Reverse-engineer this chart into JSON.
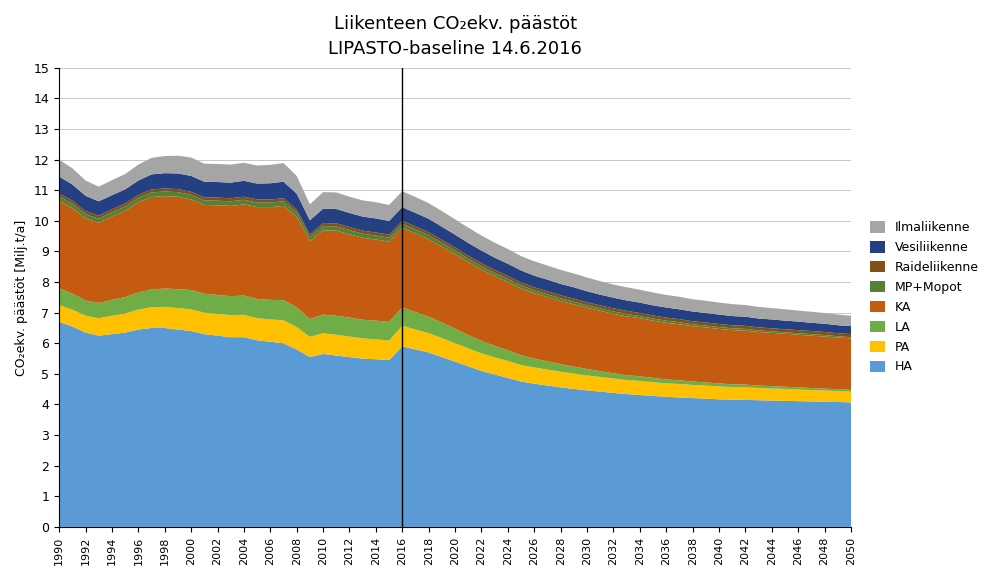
{
  "title_line1": "Liikenteen CO₂ekv. päästöt",
  "title_line2": "LIPASTO-baseline 14.6.2016",
  "ylabel": "CO₂ekv. päästöt [Milj.t/a]",
  "vline_x": 2016,
  "ylim": [
    0,
    15
  ],
  "yticks": [
    0,
    1,
    2,
    3,
    4,
    5,
    6,
    7,
    8,
    9,
    10,
    11,
    12,
    13,
    14,
    15
  ],
  "background_color": "#ffffff",
  "colors": {
    "HA": "#5B9BD5",
    "PA": "#FFC000",
    "LA": "#70AD47",
    "KA": "#C55A11",
    "MP+Mopot": "#538135",
    "Raideliikenne": "#7F5217",
    "Vesiliikenne": "#243F82",
    "Ilmaliikenne": "#A5A5A5"
  },
  "years": [
    1990,
    1991,
    1992,
    1993,
    1994,
    1995,
    1996,
    1997,
    1998,
    1999,
    2000,
    2001,
    2002,
    2003,
    2004,
    2005,
    2006,
    2007,
    2008,
    2009,
    2010,
    2011,
    2012,
    2013,
    2014,
    2015,
    2016,
    2017,
    2018,
    2019,
    2020,
    2021,
    2022,
    2023,
    2024,
    2025,
    2026,
    2027,
    2028,
    2029,
    2030,
    2031,
    2032,
    2033,
    2034,
    2035,
    2036,
    2037,
    2038,
    2039,
    2040,
    2041,
    2042,
    2043,
    2044,
    2045,
    2046,
    2047,
    2048,
    2049,
    2050
  ],
  "HA": [
    6.7,
    6.55,
    6.35,
    6.25,
    6.3,
    6.35,
    6.45,
    6.5,
    6.5,
    6.45,
    6.4,
    6.3,
    6.25,
    6.2,
    6.2,
    6.1,
    6.05,
    6.0,
    5.8,
    5.55,
    5.65,
    5.6,
    5.55,
    5.5,
    5.48,
    5.45,
    5.9,
    5.8,
    5.7,
    5.55,
    5.4,
    5.25,
    5.1,
    4.98,
    4.87,
    4.75,
    4.68,
    4.62,
    4.56,
    4.51,
    4.46,
    4.42,
    4.38,
    4.34,
    4.31,
    4.28,
    4.25,
    4.23,
    4.21,
    4.19,
    4.17,
    4.16,
    4.15,
    4.14,
    4.13,
    4.12,
    4.11,
    4.1,
    4.09,
    4.08,
    4.07
  ],
  "PA": [
    0.55,
    0.55,
    0.55,
    0.57,
    0.6,
    0.62,
    0.65,
    0.68,
    0.69,
    0.7,
    0.71,
    0.7,
    0.71,
    0.72,
    0.73,
    0.72,
    0.73,
    0.75,
    0.73,
    0.66,
    0.68,
    0.68,
    0.67,
    0.66,
    0.65,
    0.64,
    0.67,
    0.65,
    0.63,
    0.62,
    0.6,
    0.58,
    0.57,
    0.56,
    0.55,
    0.54,
    0.53,
    0.52,
    0.51,
    0.5,
    0.49,
    0.48,
    0.47,
    0.46,
    0.46,
    0.45,
    0.44,
    0.44,
    0.43,
    0.43,
    0.42,
    0.41,
    0.41,
    0.4,
    0.39,
    0.39,
    0.38,
    0.37,
    0.37,
    0.36,
    0.35
  ],
  "LA": [
    0.55,
    0.52,
    0.5,
    0.5,
    0.52,
    0.54,
    0.56,
    0.58,
    0.6,
    0.62,
    0.63,
    0.62,
    0.62,
    0.62,
    0.63,
    0.63,
    0.64,
    0.66,
    0.65,
    0.58,
    0.61,
    0.62,
    0.62,
    0.61,
    0.61,
    0.61,
    0.6,
    0.57,
    0.54,
    0.51,
    0.48,
    0.44,
    0.41,
    0.38,
    0.35,
    0.32,
    0.29,
    0.27,
    0.25,
    0.23,
    0.21,
    0.19,
    0.17,
    0.16,
    0.15,
    0.14,
    0.13,
    0.12,
    0.11,
    0.1,
    0.1,
    0.09,
    0.09,
    0.08,
    0.08,
    0.07,
    0.07,
    0.07,
    0.06,
    0.06,
    0.06
  ],
  "KA": [
    2.85,
    2.8,
    2.68,
    2.62,
    2.72,
    2.82,
    2.95,
    3.02,
    3.02,
    3.02,
    2.96,
    2.9,
    2.93,
    2.95,
    2.98,
    3.0,
    3.03,
    3.08,
    2.95,
    2.55,
    2.75,
    2.78,
    2.72,
    2.68,
    2.65,
    2.62,
    2.6,
    2.57,
    2.53,
    2.48,
    2.43,
    2.38,
    2.33,
    2.28,
    2.23,
    2.18,
    2.14,
    2.1,
    2.06,
    2.03,
    2.0,
    1.97,
    1.94,
    1.92,
    1.9,
    1.87,
    1.85,
    1.83,
    1.81,
    1.8,
    1.78,
    1.77,
    1.76,
    1.75,
    1.74,
    1.73,
    1.72,
    1.71,
    1.7,
    1.69,
    1.68
  ],
  "MP+Mopot": [
    0.15,
    0.14,
    0.14,
    0.13,
    0.14,
    0.14,
    0.14,
    0.15,
    0.15,
    0.15,
    0.15,
    0.15,
    0.15,
    0.15,
    0.15,
    0.15,
    0.15,
    0.15,
    0.14,
    0.13,
    0.14,
    0.14,
    0.14,
    0.13,
    0.13,
    0.13,
    0.13,
    0.13,
    0.13,
    0.12,
    0.12,
    0.11,
    0.11,
    0.1,
    0.1,
    0.1,
    0.09,
    0.09,
    0.09,
    0.09,
    0.08,
    0.08,
    0.08,
    0.08,
    0.07,
    0.07,
    0.07,
    0.07,
    0.06,
    0.06,
    0.06,
    0.06,
    0.06,
    0.05,
    0.05,
    0.05,
    0.05,
    0.05,
    0.05,
    0.04,
    0.04
  ],
  "Raideliikenne": [
    0.1,
    0.1,
    0.1,
    0.1,
    0.1,
    0.1,
    0.1,
    0.1,
    0.1,
    0.1,
    0.1,
    0.1,
    0.1,
    0.1,
    0.1,
    0.1,
    0.1,
    0.1,
    0.1,
    0.09,
    0.1,
    0.1,
    0.1,
    0.1,
    0.1,
    0.1,
    0.1,
    0.1,
    0.1,
    0.1,
    0.1,
    0.1,
    0.1,
    0.1,
    0.1,
    0.1,
    0.1,
    0.1,
    0.1,
    0.1,
    0.1,
    0.1,
    0.1,
    0.1,
    0.1,
    0.1,
    0.1,
    0.1,
    0.1,
    0.1,
    0.1,
    0.1,
    0.1,
    0.1,
    0.1,
    0.1,
    0.1,
    0.1,
    0.1,
    0.1,
    0.1
  ],
  "Vesiliikenne": [
    0.55,
    0.53,
    0.5,
    0.47,
    0.46,
    0.46,
    0.47,
    0.49,
    0.5,
    0.51,
    0.52,
    0.51,
    0.51,
    0.51,
    0.52,
    0.52,
    0.53,
    0.54,
    0.52,
    0.46,
    0.47,
    0.47,
    0.46,
    0.46,
    0.46,
    0.45,
    0.45,
    0.44,
    0.44,
    0.43,
    0.42,
    0.42,
    0.41,
    0.4,
    0.4,
    0.39,
    0.38,
    0.38,
    0.37,
    0.37,
    0.36,
    0.35,
    0.35,
    0.34,
    0.34,
    0.33,
    0.33,
    0.32,
    0.32,
    0.31,
    0.31,
    0.3,
    0.3,
    0.29,
    0.29,
    0.28,
    0.28,
    0.27,
    0.27,
    0.26,
    0.26
  ],
  "Ilmaliikenne": [
    0.55,
    0.53,
    0.5,
    0.48,
    0.49,
    0.5,
    0.52,
    0.54,
    0.56,
    0.58,
    0.6,
    0.59,
    0.59,
    0.59,
    0.59,
    0.59,
    0.6,
    0.61,
    0.58,
    0.52,
    0.54,
    0.54,
    0.53,
    0.53,
    0.53,
    0.52,
    0.52,
    0.52,
    0.51,
    0.51,
    0.5,
    0.5,
    0.49,
    0.49,
    0.48,
    0.47,
    0.47,
    0.46,
    0.46,
    0.45,
    0.45,
    0.44,
    0.43,
    0.43,
    0.42,
    0.42,
    0.41,
    0.41,
    0.4,
    0.4,
    0.39,
    0.39,
    0.38,
    0.38,
    0.37,
    0.37,
    0.36,
    0.36,
    0.35,
    0.35,
    0.34
  ]
}
